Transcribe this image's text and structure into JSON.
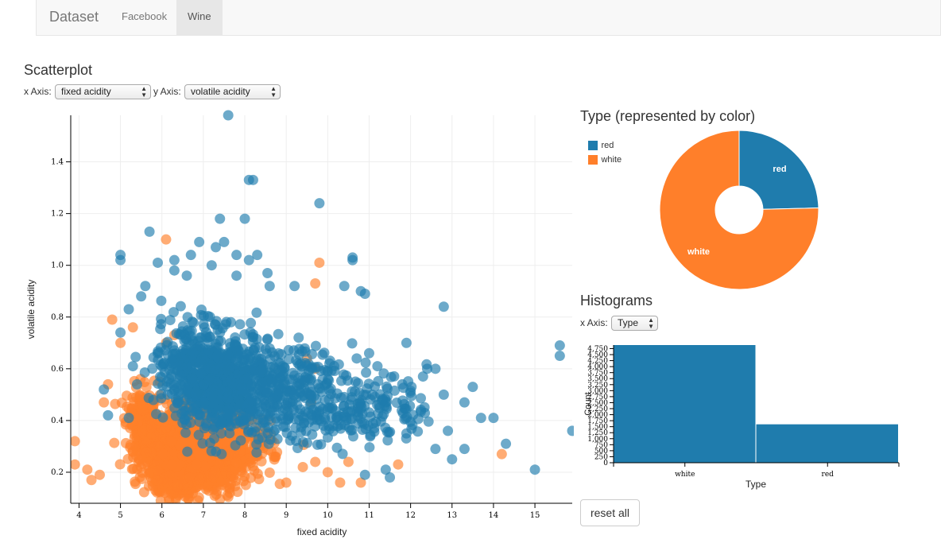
{
  "navbar": {
    "brand": "Dataset",
    "tabs": [
      {
        "label": "Facebook",
        "active": false
      },
      {
        "label": "Wine",
        "active": true
      }
    ]
  },
  "scatter": {
    "heading": "Scatterplot",
    "x_axis_label": "x Axis:",
    "x_axis_value": "fixed acidity",
    "y_axis_label": "y Axis:",
    "y_axis_value": "volatile acidity"
  },
  "type_panel": {
    "heading": "Type (represented by color)",
    "legend": [
      {
        "label": "red",
        "color": "#1f7cad"
      },
      {
        "label": "white",
        "color": "#ff7f2a"
      }
    ]
  },
  "histograms": {
    "heading": "Histograms",
    "x_axis_label": "x Axis:",
    "x_axis_value": "Type"
  },
  "reset_label": "reset all",
  "colors": {
    "red": "#1f7cad",
    "white": "#ff7f2a"
  },
  "chart_data": [
    {
      "type": "scatter",
      "xlabel": "fixed acidity",
      "ylabel": "volatile acidity",
      "xlim": [
        3.8,
        15.9
      ],
      "ylim": [
        0.08,
        1.58
      ],
      "x_ticks": [
        4,
        5,
        6,
        7,
        8,
        9,
        10,
        11,
        12,
        13,
        14,
        15
      ],
      "y_ticks": [
        0.2,
        0.4,
        0.6,
        0.8,
        1.0,
        1.2,
        1.4
      ],
      "grid": true,
      "series": [
        {
          "name": "red",
          "points": [
            [
              7.6,
              1.58
            ],
            [
              8.1,
              1.33
            ],
            [
              8.2,
              1.33
            ],
            [
              9.8,
              1.24
            ],
            [
              7.4,
              1.18
            ],
            [
              8.0,
              1.18
            ],
            [
              5.7,
              1.13
            ],
            [
              6.9,
              1.09
            ],
            [
              7.5,
              1.09
            ],
            [
              7.3,
              1.07
            ],
            [
              5.0,
              1.04
            ],
            [
              5.0,
              1.02
            ],
            [
              6.3,
              1.02
            ],
            [
              10.6,
              1.03
            ],
            [
              10.6,
              1.02
            ],
            [
              8.3,
              1.04
            ],
            [
              8.1,
              1.02
            ],
            [
              5.9,
              1.01
            ],
            [
              7.8,
              1.04
            ],
            [
              7.2,
              1.0
            ],
            [
              6.7,
              1.04
            ],
            [
              8.6,
              0.92
            ],
            [
              9.2,
              0.92
            ],
            [
              10.4,
              0.92
            ],
            [
              10.8,
              0.9
            ],
            [
              10.9,
              0.89
            ],
            [
              5.6,
              0.92
            ],
            [
              6.6,
              0.96
            ],
            [
              6.3,
              0.98
            ],
            [
              7.8,
              0.96
            ],
            [
              12.8,
              0.84
            ],
            [
              15.6,
              0.69
            ],
            [
              15.6,
              0.65
            ],
            [
              15.9,
              0.36
            ],
            [
              14.3,
              0.31
            ],
            [
              15.0,
              0.21
            ],
            [
              14.0,
              0.41
            ],
            [
              13.7,
              0.41
            ],
            [
              13.3,
              0.47
            ],
            [
              13.5,
              0.53
            ],
            [
              12.8,
              0.5
            ],
            [
              11.9,
              0.7
            ],
            [
              11.8,
              0.54
            ],
            [
              12.4,
              0.6
            ],
            [
              12.6,
              0.6
            ],
            [
              12.3,
              0.57
            ],
            [
              11.2,
              0.61
            ],
            [
              11.0,
              0.66
            ],
            [
              10.7,
              0.64
            ],
            [
              11.9,
              0.35
            ],
            [
              12.9,
              0.36
            ],
            [
              13.0,
              0.25
            ],
            [
              13.3,
              0.29
            ],
            [
              12.6,
              0.29
            ],
            [
              11.4,
              0.21
            ],
            [
              11.5,
              0.18
            ],
            [
              10.9,
              0.19
            ],
            [
              4.6,
              0.52
            ],
            [
              4.7,
              0.42
            ],
            [
              5.2,
              0.41
            ],
            [
              5.4,
              0.54
            ],
            [
              5.3,
              0.61
            ],
            [
              5.0,
              0.74
            ],
            [
              5.5,
              0.88
            ],
            [
              5.2,
              0.83
            ]
          ],
          "clusters": [
            [
              7.4,
              0.55,
              1.0,
              0.14,
              650
            ],
            [
              9.0,
              0.5,
              1.3,
              0.13,
              300
            ],
            [
              11.0,
              0.45,
              1.2,
              0.1,
              150
            ],
            [
              6.6,
              0.63,
              0.7,
              0.12,
              150
            ]
          ]
        },
        {
          "name": "white",
          "points": [
            [
              6.1,
              1.1
            ],
            [
              9.8,
              1.01
            ],
            [
              4.8,
              0.79
            ],
            [
              5.3,
              0.76
            ],
            [
              5.0,
              0.7
            ],
            [
              4.7,
              0.54
            ],
            [
              4.6,
              0.47
            ],
            [
              3.9,
              0.32
            ],
            [
              3.9,
              0.23
            ],
            [
              4.2,
              0.21
            ],
            [
              4.3,
              0.17
            ],
            [
              4.5,
              0.19
            ],
            [
              14.2,
              0.27
            ],
            [
              11.7,
              0.23
            ],
            [
              10.3,
              0.16
            ],
            [
              10.8,
              0.16
            ],
            [
              10.5,
              0.24
            ],
            [
              9.7,
              0.24
            ],
            [
              10.0,
              0.2
            ],
            [
              9.6,
              0.47
            ],
            [
              9.7,
              0.6
            ],
            [
              9.5,
              0.64
            ],
            [
              9.7,
              0.93
            ],
            [
              6.3,
              0.73
            ],
            [
              6.1,
              0.7
            ],
            [
              7.1,
              0.41
            ],
            [
              8.4,
              0.31
            ],
            [
              9.0,
              0.16
            ],
            [
              8.7,
              0.26
            ],
            [
              9.4,
              0.22
            ]
          ],
          "clusters": [
            [
              6.8,
              0.29,
              0.75,
              0.1,
              1800
            ],
            [
              6.2,
              0.22,
              0.5,
              0.07,
              400
            ],
            [
              7.7,
              0.3,
              0.8,
              0.1,
              300
            ],
            [
              5.6,
              0.38,
              0.4,
              0.1,
              200
            ]
          ]
        }
      ]
    },
    {
      "type": "pie",
      "categories": [
        "red",
        "white"
      ],
      "values": [
        1599,
        4898
      ],
      "colors": [
        "#1f7cad",
        "#ff7f2a"
      ],
      "donut": true
    },
    {
      "type": "bar",
      "categories": [
        "white",
        "red"
      ],
      "values": [
        4898,
        1599
      ],
      "xlabel": "Type",
      "ylabel": "Count",
      "ylim": [
        0,
        4898
      ],
      "y_ticks": [
        0,
        250,
        500,
        750,
        1000,
        1250,
        1500,
        1750,
        2000,
        2250,
        2500,
        2750,
        3000,
        3250,
        3500,
        3750,
        4000,
        4250,
        4500,
        4750
      ],
      "y_tick_labels": [
        "0",
        "250",
        "500",
        "750",
        "1,000",
        "1,250",
        "1,500",
        "1,750",
        "2,000",
        "2,250",
        "2,500",
        "2,750",
        "3,000",
        "3,250",
        "3,500",
        "3,750",
        "4,000",
        "4,250",
        "4,500",
        "4,750"
      ],
      "color": "#1f7cad"
    }
  ]
}
